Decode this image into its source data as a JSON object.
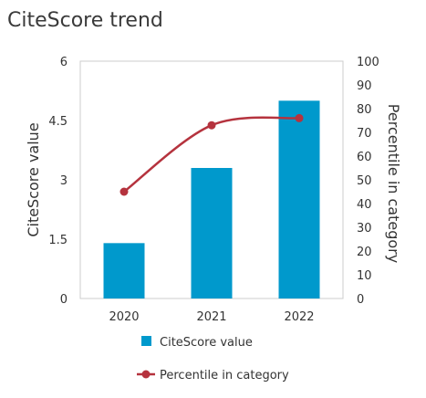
{
  "chart_data": {
    "type": "bar",
    "title": "CiteScore trend",
    "categories": [
      "2020",
      "2021",
      "2022"
    ],
    "series": [
      {
        "name": "CiteScore value",
        "kind": "bar",
        "axis": "left",
        "color": "#0099cc",
        "values": [
          1.4,
          3.3,
          5.0
        ]
      },
      {
        "name": "Percentile in category",
        "kind": "line",
        "axis": "right",
        "color": "#b5333e",
        "values": [
          45,
          73,
          76
        ]
      }
    ],
    "ylabel": "CiteScore value",
    "ylabel_right": "Percentile in category",
    "ylim": [
      0,
      6
    ],
    "ylim_right": [
      0,
      100
    ],
    "yticks": [
      "0",
      "1.5",
      "3",
      "4.5",
      "6"
    ],
    "yticks_right": [
      "0",
      "10",
      "20",
      "30",
      "40",
      "50",
      "60",
      "70",
      "80",
      "90",
      "100"
    ],
    "grid": false,
    "legend_position": "bottom"
  }
}
